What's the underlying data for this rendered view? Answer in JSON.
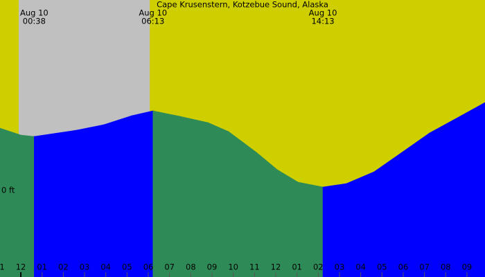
{
  "chart_data": {
    "type": "tide",
    "title": "Cape Krusenstern, Kotzebue Sound, Alaska",
    "x": [
      -0.98,
      0,
      0.63,
      2.61,
      3.91,
      5.22,
      6.22,
      7.5,
      8.81,
      9.78,
      11.09,
      12.07,
      13.05,
      14.22,
      15.33,
      16.63,
      17.94,
      19.24,
      20.55,
      21.85
    ],
    "values": [
      0.9,
      0.8,
      0.78,
      0.87,
      0.95,
      1.08,
      1.15,
      1.07,
      0.98,
      0.85,
      0.55,
      0.3,
      0.12,
      0.05,
      0.1,
      0.27,
      0.55,
      0.83,
      1.05,
      1.27
    ],
    "xlim": [
      -0.98,
      21.85
    ],
    "ylim": [
      -1.25,
      2.75
    ],
    "yticks": [
      {
        "value": 0,
        "label": "0 ft"
      }
    ],
    "xticks": [
      {
        "value": -1,
        "label": "11"
      },
      {
        "value": 0,
        "label": "12"
      },
      {
        "value": 1,
        "label": "01"
      },
      {
        "value": 2,
        "label": "02"
      },
      {
        "value": 3,
        "label": "03"
      },
      {
        "value": 4,
        "label": "04"
      },
      {
        "value": 5,
        "label": "05"
      },
      {
        "value": 6,
        "label": "06"
      },
      {
        "value": 7,
        "label": "07"
      },
      {
        "value": 8,
        "label": "08"
      },
      {
        "value": 9,
        "label": "09"
      },
      10,
      11,
      {
        "value": 12,
        "label": "12"
      },
      {
        "value": 13,
        "label": "01"
      },
      {
        "value": 14,
        "label": "02"
      },
      {
        "value": 15,
        "label": "03"
      },
      {
        "value": 16,
        "label": "04"
      },
      {
        "value": 17,
        "label": "05"
      },
      {
        "value": 18,
        "label": "06"
      },
      {
        "value": 19,
        "label": "07"
      },
      {
        "value": 20,
        "label": "08"
      },
      {
        "value": 21,
        "label": "09"
      }
    ],
    "night": [
      -0.1,
      6.07
    ],
    "annotations": [
      {
        "x": 0.63,
        "date": "Aug 10",
        "time": "00:38"
      },
      {
        "x": 6.22,
        "date": "Aug 10",
        "time": "06:13"
      },
      {
        "x": 14.22,
        "date": "Aug 10",
        "time": "14:13"
      }
    ],
    "colors": {
      "day": "#cfcf00",
      "night": "#c0c0c0",
      "rising": "#0000ff",
      "falling": "#2e8b57"
    }
  }
}
